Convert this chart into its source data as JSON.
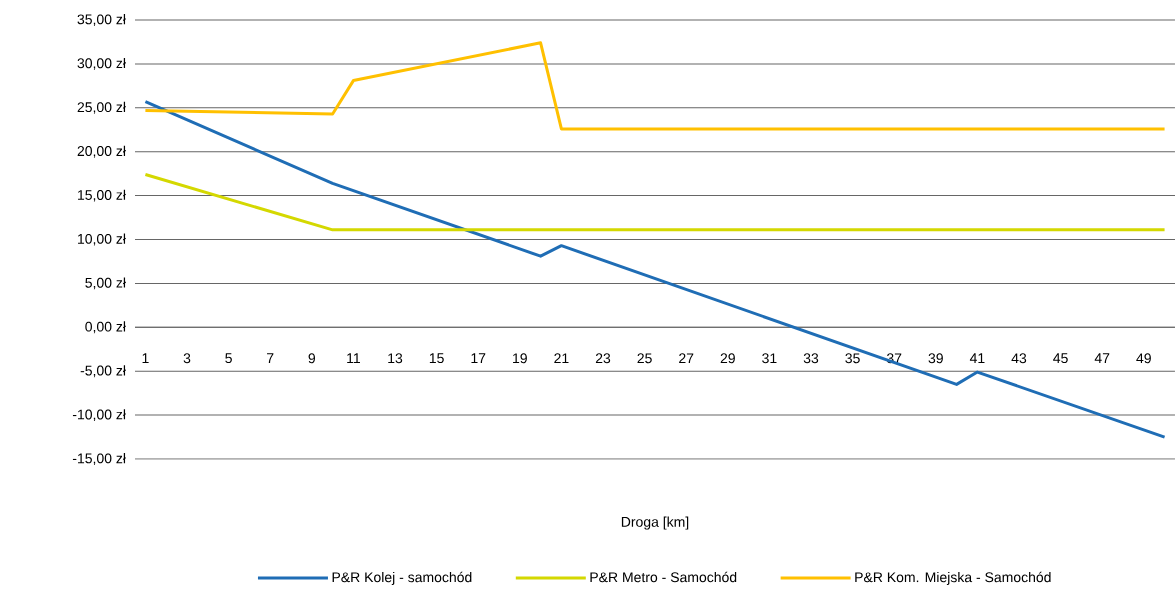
{
  "chart_data": {
    "type": "line",
    "xlabel": "Droga [km]",
    "xlim": [
      0.5,
      50.5
    ],
    "xticks": [
      1,
      3,
      5,
      7,
      9,
      11,
      13,
      15,
      17,
      19,
      21,
      23,
      25,
      27,
      29,
      31,
      33,
      35,
      37,
      39,
      41,
      43,
      45,
      47,
      49
    ],
    "ylim": [
      -15,
      35
    ],
    "yticks": [
      {
        "value": 35,
        "label": "35,00 zł"
      },
      {
        "value": 30,
        "label": "30,00 zł"
      },
      {
        "value": 25,
        "label": "25,00 zł"
      },
      {
        "value": 20,
        "label": "20,00 zł"
      },
      {
        "value": 15,
        "label": "15,00 zł"
      },
      {
        "value": 10,
        "label": "10,00 zł"
      },
      {
        "value": 5,
        "label": "5,00 zł"
      },
      {
        "value": 0,
        "label": "0,00 zł"
      },
      {
        "value": -5,
        "label": "-5,00 zł"
      },
      {
        "value": -10,
        "label": "-10,00 zł"
      },
      {
        "value": -15,
        "label": "-15,00 zł"
      }
    ],
    "grid": "y",
    "legend": "bottom",
    "series": [
      {
        "name": "P&R Kolej - samochód",
        "color": "#1f6db5",
        "x": [
          1,
          10,
          20,
          21,
          40,
          41,
          50
        ],
        "values": [
          25.7,
          16.4,
          8.1,
          9.3,
          -6.5,
          -5.1,
          -12.5
        ]
      },
      {
        "name": "P&R Metro - Samochód",
        "color": "#d4d800",
        "x": [
          1,
          10,
          50
        ],
        "values": [
          17.4,
          11.1,
          11.1
        ]
      },
      {
        "name": "P&R Kom. Miejska - Samochód",
        "color": "#ffc000",
        "x": [
          1,
          10,
          11,
          20,
          21,
          50
        ],
        "values": [
          24.7,
          24.3,
          28.1,
          32.4,
          22.6,
          22.6
        ]
      }
    ]
  }
}
